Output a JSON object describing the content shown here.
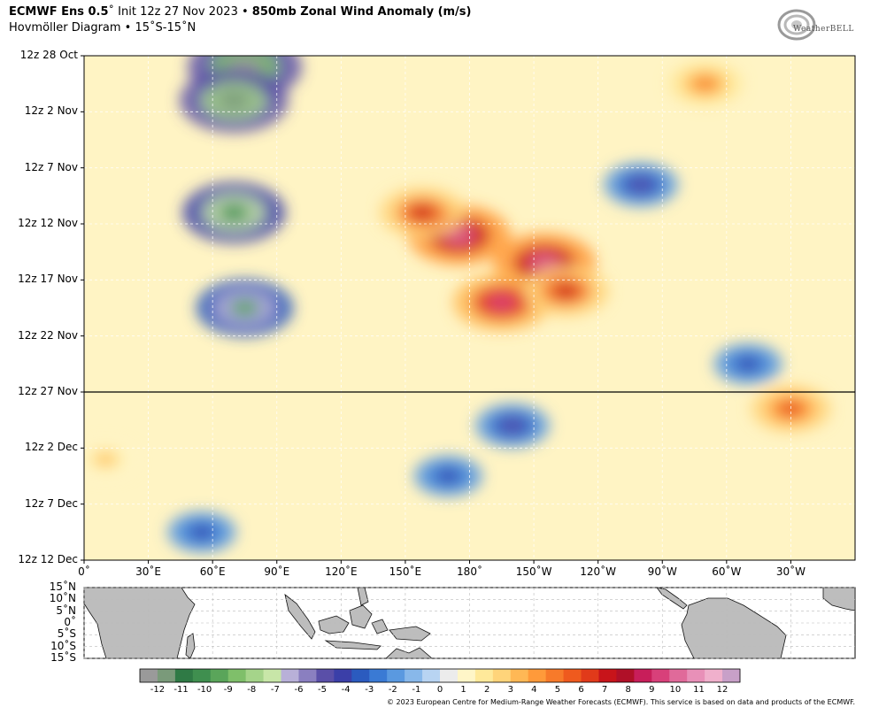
{
  "header": {
    "title_model": "ECMWF Ens 0.5",
    "title_degree": "˚",
    "title_init": " Init 12z 27 Nov 2023 • ",
    "title_field": "850mb Zonal Wind Anomaly (m/s)",
    "subtitle": "Hovmöller Diagram • 15˚S-15˚N"
  },
  "logo": {
    "text": "WeatherBELL",
    "icon": "weatherbell-swirl-logo"
  },
  "credit": "© 2023 European Centre for Medium-Range Weather Forecasts (ECMWF). This service is based on data and products of the ECMWF.",
  "chart_data": {
    "type": "heatmap",
    "title": "850mb Zonal Wind Anomaly (m/s)",
    "y_ticks": [
      "12z 28 Oct",
      "12z 2 Nov",
      "12z 7 Nov",
      "12z 12 Nov",
      "12z 17 Nov",
      "12z 22 Nov",
      "12z 27 Nov",
      "12z 2 Dec",
      "12z 7 Dec",
      "12z 12 Dec"
    ],
    "x_ticks": [
      "0˚",
      "30˚E",
      "60˚E",
      "90˚E",
      "120˚E",
      "150˚E",
      "180˚",
      "150˚W",
      "120˚W",
      "90˚W",
      "60˚W",
      "30˚W"
    ],
    "x_tick_lon": [
      0,
      30,
      60,
      90,
      120,
      150,
      180,
      210,
      240,
      270,
      300,
      330
    ],
    "x_range_lon": [
      0,
      360
    ],
    "init_line": "12z 27 Nov",
    "lat_ticks": [
      "15˚N",
      "10˚N",
      "5˚N",
      "0˚",
      "5˚S",
      "10˚S",
      "15˚S"
    ],
    "colorbar": {
      "labels": [
        "-12",
        "-11",
        "-10",
        "-9",
        "-8",
        "-7",
        "-6",
        "-5",
        "-4",
        "-3",
        "-2",
        "-1",
        "0",
        "1",
        "2",
        "3",
        "4",
        "5",
        "6",
        "7",
        "8",
        "9",
        "10",
        "11",
        "12"
      ],
      "colors": [
        "#9a9a9a",
        "#7a9a7a",
        "#2f7a45",
        "#3f8f4f",
        "#5aa55a",
        "#7fbf6a",
        "#a5d48a",
        "#c8e6a8",
        "#b8b0d8",
        "#8a7fc0",
        "#5a4fa8",
        "#3b3fa8",
        "#2b5bbf",
        "#3a7ad4",
        "#5a99e0",
        "#88b8ea",
        "#b8d4f2",
        "#ececec",
        "#fff6c8",
        "#ffe99a",
        "#ffd47a",
        "#ffb855",
        "#ff9a3a",
        "#f77a2a",
        "#ef5a1e",
        "#e13a1a",
        "#c8141a",
        "#b01028",
        "#c81e5a",
        "#d8407a",
        "#e06a9a",
        "#e890b8",
        "#f0b0cc",
        "#c8a0c8"
      ]
    },
    "anomaly_features": [
      {
        "lon": 75,
        "date_index": 0.2,
        "value": -12
      },
      {
        "lon": 70,
        "date_index": 0.8,
        "value": -11
      },
      {
        "lon": 70,
        "date_index": 2.8,
        "value": -10
      },
      {
        "lon": 75,
        "date_index": 4.5,
        "value": -9
      },
      {
        "lon": 175,
        "date_index": 3.2,
        "value": 10
      },
      {
        "lon": 215,
        "date_index": 3.7,
        "value": 10
      },
      {
        "lon": 195,
        "date_index": 4.4,
        "value": 9
      },
      {
        "lon": 158,
        "date_index": 2.8,
        "value": 7
      },
      {
        "lon": 330,
        "date_index": 6.3,
        "value": 6
      },
      {
        "lon": 290,
        "date_index": 0.5,
        "value": 5
      },
      {
        "lon": 225,
        "date_index": 4.2,
        "value": 7
      },
      {
        "lon": 200,
        "date_index": 6.6,
        "value": -5
      },
      {
        "lon": 55,
        "date_index": 8.5,
        "value": -4
      },
      {
        "lon": 170,
        "date_index": 7.5,
        "value": -4
      },
      {
        "lon": 10,
        "date_index": 7.2,
        "value": 3
      },
      {
        "lon": 260,
        "date_index": 2.3,
        "value": -5
      },
      {
        "lon": 310,
        "date_index": 5.5,
        "value": -4
      }
    ]
  }
}
